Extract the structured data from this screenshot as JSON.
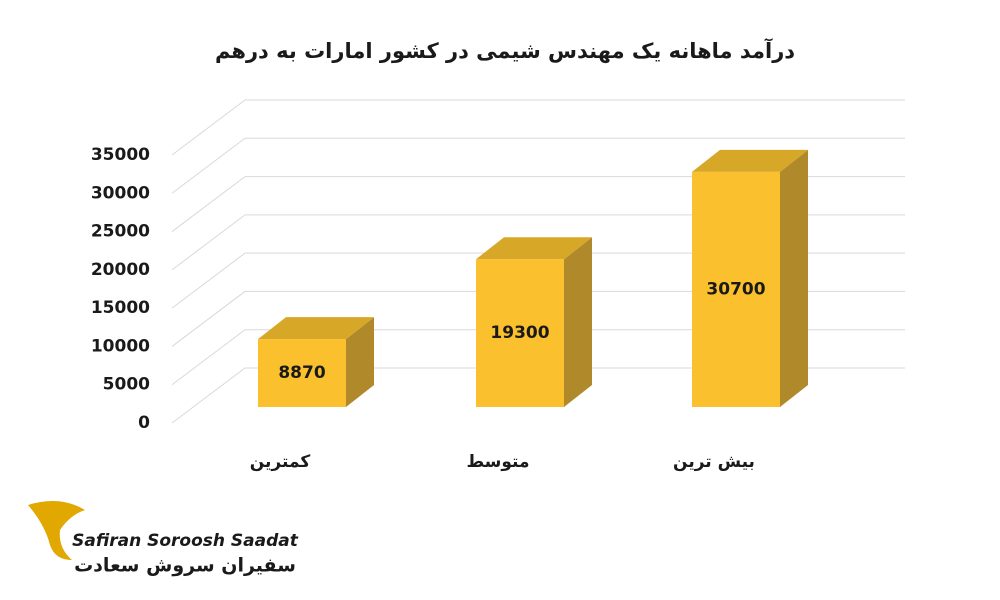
{
  "chart_data": {
    "type": "bar3d",
    "title": "درآمد ماهانه یک مهندس شیمی در کشور امارات به درهم",
    "categories": [
      "کمترین",
      "متوسط",
      "بیش ترین"
    ],
    "values": [
      8870,
      19300,
      30700
    ],
    "color": "#fbc02d",
    "side_color": "#b08a2a",
    "top_color": "#d7a828",
    "ylim": [
      0,
      35000
    ],
    "yticks": [
      0,
      5000,
      10000,
      15000,
      20000,
      25000,
      30000,
      35000
    ],
    "grid": true
  },
  "logo": {
    "name": "Safiran Soroosh Saadat",
    "name_fa": "سفیران سروش سعادت"
  }
}
